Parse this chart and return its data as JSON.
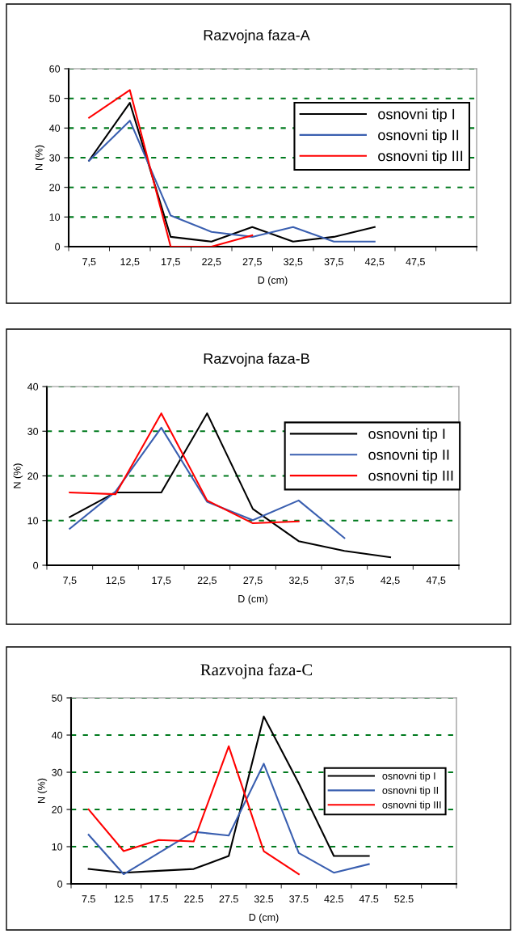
{
  "chart_data": [
    {
      "type": "line",
      "title": "Razvojna faza-A",
      "xlabel": "D (cm)",
      "ylabel": "N (%)",
      "categories": [
        "7,5",
        "12,5",
        "17,5",
        "22,5",
        "27,5",
        "32,5",
        "37,5",
        "42,5",
        "47,5",
        null
      ],
      "ylim": [
        0,
        60
      ],
      "yticks": [
        0,
        10,
        20,
        30,
        40,
        50,
        60
      ],
      "grid": "y",
      "legend": "top right",
      "marker": "none",
      "line_style": "solid",
      "series": [
        {
          "name": "osnovni tip I",
          "color": "#000000",
          "values": [
            29,
            48.5,
            3.3,
            1.7,
            6.6,
            1.7,
            3.3,
            6.6,
            null,
            null
          ]
        },
        {
          "name": "osnovni tip II",
          "color": "#3a5fb0",
          "values": [
            29,
            42.5,
            10.5,
            5,
            3.3,
            6.6,
            1.7,
            1.7,
            null,
            null
          ]
        },
        {
          "name": "osnovni tip III",
          "color": "#ff0000",
          "values": [
            43.5,
            52.8,
            0,
            0,
            3.8,
            null,
            null,
            null,
            null,
            null
          ]
        }
      ]
    },
    {
      "type": "line",
      "title": "Razvojna faza-B",
      "xlabel": "D (cm)",
      "ylabel": "N (%)",
      "categories": [
        "7,5",
        "12,5",
        "17,5",
        "22,5",
        "27,5",
        "32,5",
        "37,5",
        "42,5",
        "47,5"
      ],
      "ylim": [
        0,
        40
      ],
      "yticks": [
        0,
        10,
        20,
        30,
        40
      ],
      "grid": "y",
      "legend": "top right",
      "marker": "none",
      "line_style": "solid",
      "series": [
        {
          "name": "osnovni tip I",
          "color": "#000000",
          "values": [
            10.8,
            16.3,
            16.3,
            34,
            12.6,
            5.4,
            3.2,
            1.8,
            null
          ]
        },
        {
          "name": "osnovni tip II",
          "color": "#3a5fb0",
          "values": [
            8.2,
            16.5,
            30.8,
            14.2,
            10.1,
            14.5,
            6.1,
            null,
            null
          ]
        },
        {
          "name": "osnovni tip III",
          "color": "#ff0000",
          "values": [
            16.3,
            15.9,
            34,
            14.5,
            9.4,
            9.8,
            null,
            null,
            null
          ]
        }
      ]
    },
    {
      "type": "line",
      "title": "Razvojna faza-C",
      "xlabel": "D (cm)",
      "ylabel": "N (%)",
      "categories": [
        "7.5",
        "12.5",
        "17.5",
        "22.5",
        "27.5",
        "32.5",
        "37.5",
        "42.5",
        "47.5",
        "52.5",
        null
      ],
      "ylim": [
        0,
        50
      ],
      "yticks": [
        0,
        10,
        20,
        30,
        40,
        50
      ],
      "grid": "y",
      "legend": "right",
      "marker": "none",
      "line_style": "solid",
      "series": [
        {
          "name": "osnovni tip I",
          "color": "#000000",
          "values": [
            4,
            3,
            3.5,
            4,
            7.5,
            45,
            27,
            7.5,
            7.5,
            null,
            null
          ]
        },
        {
          "name": "osnovni tip II",
          "color": "#3a5fb0",
          "values": [
            13.2,
            2.6,
            8.3,
            14,
            13,
            32.3,
            8.3,
            3,
            5.3,
            null,
            null
          ]
        },
        {
          "name": "osnovni tip III",
          "color": "#ff0000",
          "values": [
            20,
            8.8,
            11.8,
            11.4,
            37,
            8.8,
            2.6,
            null,
            null,
            null,
            null
          ]
        }
      ]
    }
  ]
}
